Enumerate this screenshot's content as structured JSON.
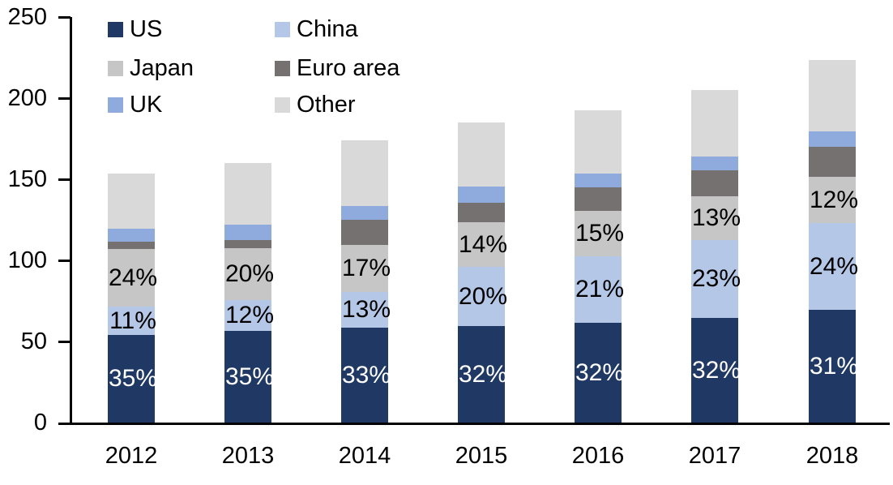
{
  "chart_data": {
    "type": "bar",
    "stacked": true,
    "title": "",
    "xlabel": "",
    "ylabel": "",
    "categories": [
      "2012",
      "2013",
      "2014",
      "2015",
      "2016",
      "2017",
      "2018"
    ],
    "series": [
      {
        "name": "US",
        "color": "#1F3864",
        "values": [
          54,
          56.5,
          58.5,
          59.5,
          61.5,
          64.5,
          69.5
        ],
        "percent_labels": [
          "35%",
          "35%",
          "33%",
          "32%",
          "32%",
          "32%",
          "31%"
        ],
        "label_color": "#FFFFFF"
      },
      {
        "name": "China",
        "color": "#B4C7E7",
        "values": [
          17.5,
          19,
          22,
          36.5,
          41,
          48,
          53.5
        ],
        "percent_labels": [
          "11%",
          "12%",
          "13%",
          "20%",
          "21%",
          "23%",
          "24%"
        ],
        "label_color": "#000000"
      },
      {
        "name": "Japan",
        "color": "#C6C6C6",
        "values": [
          35.5,
          32,
          29,
          27.5,
          28,
          27,
          28.5
        ],
        "percent_labels": [
          "24%",
          "20%",
          "17%",
          "14%",
          "15%",
          "13%",
          "12%"
        ],
        "label_color": "#000000"
      },
      {
        "name": "Euro area",
        "color": "#767171",
        "values": [
          4.5,
          5,
          15.5,
          12,
          14.5,
          16,
          18.5
        ],
        "percent_labels": null,
        "label_color": null
      },
      {
        "name": "UK",
        "color": "#8FAADC",
        "values": [
          8,
          9.5,
          8.5,
          10,
          8.5,
          8.5,
          9.5
        ],
        "percent_labels": null,
        "label_color": null
      },
      {
        "name": "Other",
        "color": "#D9D9D9",
        "values": [
          34,
          38,
          40.5,
          39.5,
          39,
          41,
          44
        ],
        "percent_labels": null,
        "label_color": null
      }
    ],
    "totals": [
      153.5,
      160,
      174,
      185,
      192.5,
      205,
      223.5
    ],
    "y_axis": {
      "min": 0,
      "max": 250,
      "tick_interval": 50,
      "ticks": [
        250,
        200,
        150,
        100,
        50,
        0
      ]
    },
    "legend": {
      "position": "top-left",
      "columns": 2,
      "entries": [
        "US",
        "China",
        "Japan",
        "Euro area",
        "UK",
        "Other"
      ]
    },
    "grid": false,
    "axis_color": "#000000",
    "background_color": "#FFFFFF"
  }
}
